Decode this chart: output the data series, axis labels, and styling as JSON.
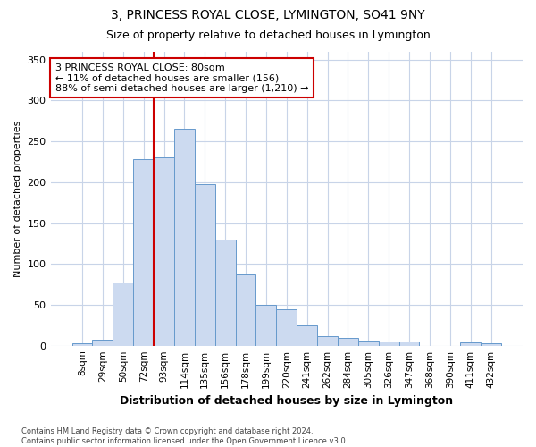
{
  "title": "3, PRINCESS ROYAL CLOSE, LYMINGTON, SO41 9NY",
  "subtitle": "Size of property relative to detached houses in Lymington",
  "xlabel": "Distribution of detached houses by size in Lymington",
  "ylabel": "Number of detached properties",
  "bar_color": "#ccdaf0",
  "bar_edge_color": "#6699cc",
  "categories": [
    "8sqm",
    "29sqm",
    "50sqm",
    "72sqm",
    "93sqm",
    "114sqm",
    "135sqm",
    "156sqm",
    "178sqm",
    "199sqm",
    "220sqm",
    "241sqm",
    "262sqm",
    "284sqm",
    "305sqm",
    "326sqm",
    "347sqm",
    "368sqm",
    "390sqm",
    "411sqm",
    "432sqm"
  ],
  "bar_values": [
    3,
    7,
    77,
    228,
    230,
    265,
    198,
    130,
    87,
    50,
    45,
    25,
    12,
    9,
    6,
    5,
    5,
    0,
    0,
    4,
    3
  ],
  "ylim": [
    0,
    360
  ],
  "yticks": [
    0,
    50,
    100,
    150,
    200,
    250,
    300,
    350
  ],
  "vline_position": 3.5,
  "vline_color": "#cc0000",
  "annotation_text": "3 PRINCESS ROYAL CLOSE: 80sqm\n← 11% of detached houses are smaller (156)\n88% of semi-detached houses are larger (1,210) →",
  "annotation_box_color": "#ffffff",
  "annotation_box_edgecolor": "#cc0000",
  "footer_line1": "Contains HM Land Registry data © Crown copyright and database right 2024.",
  "footer_line2": "Contains public sector information licensed under the Open Government Licence v3.0.",
  "background_color": "#ffffff",
  "grid_color": "#c8d4e8",
  "title_fontsize": 10,
  "subtitle_fontsize": 9,
  "xlabel_fontsize": 9,
  "ylabel_fontsize": 8
}
